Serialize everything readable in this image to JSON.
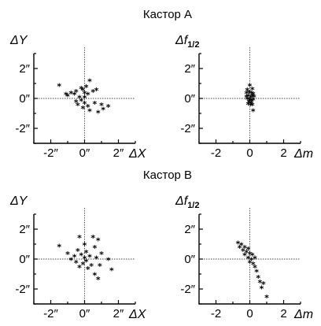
{
  "figure": {
    "group_titles": [
      "Кастор А",
      "Кастор В"
    ]
  },
  "chart_data": [
    {
      "name": "panel-a-left",
      "type": "scatter",
      "group": "Кастор А",
      "ylabel": "ΔY",
      "xlabel": "ΔX",
      "xlim": [
        -3,
        3
      ],
      "ylim": [
        -3,
        3
      ],
      "xticks": [
        -2,
        0,
        2
      ],
      "yticks": [
        -2,
        0,
        2
      ],
      "xtick_labels": [
        "-2″",
        "0″",
        "2″"
      ],
      "ytick_labels": [
        "2″",
        "0″",
        "-2″"
      ],
      "marker": "*",
      "points": [
        [
          -1.5,
          0.8
        ],
        [
          -1.1,
          0.2
        ],
        [
          -1.0,
          0.1
        ],
        [
          -0.8,
          0.3
        ],
        [
          -0.6,
          0.2
        ],
        [
          -0.5,
          0.4
        ],
        [
          -0.5,
          -0.3
        ],
        [
          -0.4,
          -0.5
        ],
        [
          -0.3,
          0.0
        ],
        [
          -0.2,
          0.6
        ],
        [
          -0.2,
          -0.2
        ],
        [
          -0.1,
          0.5
        ],
        [
          -0.1,
          -0.7
        ],
        [
          0.0,
          0.3
        ],
        [
          0.0,
          0.0
        ],
        [
          0.0,
          -0.4
        ],
        [
          0.1,
          0.7
        ],
        [
          0.2,
          0.2
        ],
        [
          0.2,
          -0.6
        ],
        [
          0.3,
          1.1
        ],
        [
          0.3,
          -0.9
        ],
        [
          0.5,
          0.4
        ],
        [
          0.6,
          -0.4
        ],
        [
          0.7,
          0.5
        ],
        [
          0.8,
          -1.0
        ],
        [
          1.0,
          -0.5
        ],
        [
          1.1,
          -0.8
        ],
        [
          1.4,
          -0.6
        ]
      ]
    },
    {
      "name": "panel-a-right",
      "type": "scatter",
      "group": "Кастор А",
      "ylabel": "Δf",
      "ylabel_sub": "1/2",
      "xlabel": "Δm",
      "xlim": [
        -3,
        3
      ],
      "ylim": [
        -3,
        3
      ],
      "xticks": [
        -2,
        0,
        2
      ],
      "yticks": [
        -2,
        0,
        2
      ],
      "xtick_labels": [
        "-2",
        "0",
        "2"
      ],
      "ytick_labels": [
        "2″",
        "0″",
        "-2″"
      ],
      "marker": "*",
      "points": [
        [
          0.0,
          0.8
        ],
        [
          -0.15,
          0.5
        ],
        [
          0.15,
          0.55
        ],
        [
          -0.2,
          0.3
        ],
        [
          -0.05,
          0.35
        ],
        [
          0.1,
          0.3
        ],
        [
          0.2,
          0.25
        ],
        [
          -0.2,
          0.05
        ],
        [
          -0.1,
          0.1
        ],
        [
          0.05,
          0.0
        ],
        [
          0.15,
          0.1
        ],
        [
          0.25,
          0.05
        ],
        [
          -0.15,
          -0.1
        ],
        [
          0.0,
          -0.15
        ],
        [
          0.1,
          -0.2
        ],
        [
          0.2,
          -0.15
        ],
        [
          -0.05,
          -0.3
        ],
        [
          0.1,
          -0.35
        ],
        [
          -0.1,
          -0.45
        ],
        [
          0.05,
          -0.5
        ],
        [
          0.15,
          -0.5
        ],
        [
          0.2,
          -0.9
        ]
      ]
    },
    {
      "name": "panel-b-left",
      "type": "scatter",
      "group": "Кастор В",
      "ylabel": "ΔY",
      "xlabel": "ΔX",
      "xlim": [
        -3,
        3
      ],
      "ylim": [
        -3,
        3
      ],
      "xticks": [
        -2,
        0,
        2
      ],
      "yticks": [
        -2,
        0,
        2
      ],
      "xtick_labels": [
        "-2″",
        "0″",
        "2″"
      ],
      "ytick_labels": [
        "2″",
        "0″",
        "-2″"
      ],
      "marker": "*",
      "points": [
        [
          -1.5,
          0.8
        ],
        [
          -1.0,
          0.3
        ],
        [
          -0.8,
          -0.1
        ],
        [
          -0.6,
          0.1
        ],
        [
          -0.5,
          -0.3
        ],
        [
          -0.4,
          0.5
        ],
        [
          -0.3,
          1.4
        ],
        [
          -0.3,
          -0.6
        ],
        [
          -0.2,
          0.2
        ],
        [
          -0.1,
          -0.4
        ],
        [
          0.0,
          0.0
        ],
        [
          0.0,
          0.9
        ],
        [
          0.1,
          -0.2
        ],
        [
          0.1,
          0.4
        ],
        [
          0.2,
          -0.7
        ],
        [
          0.3,
          0.1
        ],
        [
          0.4,
          -0.5
        ],
        [
          0.5,
          1.4
        ],
        [
          0.6,
          0.7
        ],
        [
          0.6,
          -1.1
        ],
        [
          0.7,
          0.0
        ],
        [
          0.8,
          1.2
        ],
        [
          0.8,
          -1.4
        ],
        [
          0.9,
          -0.5
        ],
        [
          1.0,
          0.3
        ],
        [
          1.4,
          -0.1
        ],
        [
          1.6,
          -0.8
        ]
      ]
    },
    {
      "name": "panel-b-right",
      "type": "scatter",
      "group": "Кастор В",
      "ylabel": "Δf",
      "ylabel_sub": "1/2",
      "xlabel": "Δm",
      "xlim": [
        -3,
        3
      ],
      "ylim": [
        -3,
        3
      ],
      "xticks": [
        -2,
        0,
        2
      ],
      "yticks": [
        -2,
        0,
        2
      ],
      "xtick_labels": [
        "-2",
        "0",
        "2"
      ],
      "ytick_labels": [
        "2″",
        "0″",
        "-2″"
      ],
      "marker": "*",
      "points": [
        [
          -0.7,
          1.0
        ],
        [
          -0.6,
          0.7
        ],
        [
          -0.5,
          0.9
        ],
        [
          -0.4,
          0.5
        ],
        [
          -0.3,
          0.7
        ],
        [
          -0.3,
          0.2
        ],
        [
          -0.2,
          0.4
        ],
        [
          -0.1,
          0.0
        ],
        [
          -0.1,
          0.6
        ],
        [
          0.0,
          0.3
        ],
        [
          0.0,
          -0.3
        ],
        [
          0.1,
          -0.1
        ],
        [
          0.15,
          0.2
        ],
        [
          0.2,
          -0.4
        ],
        [
          0.3,
          -0.6
        ],
        [
          0.3,
          0.0
        ],
        [
          0.4,
          -0.9
        ],
        [
          0.5,
          -1.3
        ],
        [
          0.6,
          -1.6
        ],
        [
          0.7,
          -2.0
        ],
        [
          0.8,
          -1.7
        ],
        [
          1.0,
          -2.6
        ]
      ]
    }
  ]
}
